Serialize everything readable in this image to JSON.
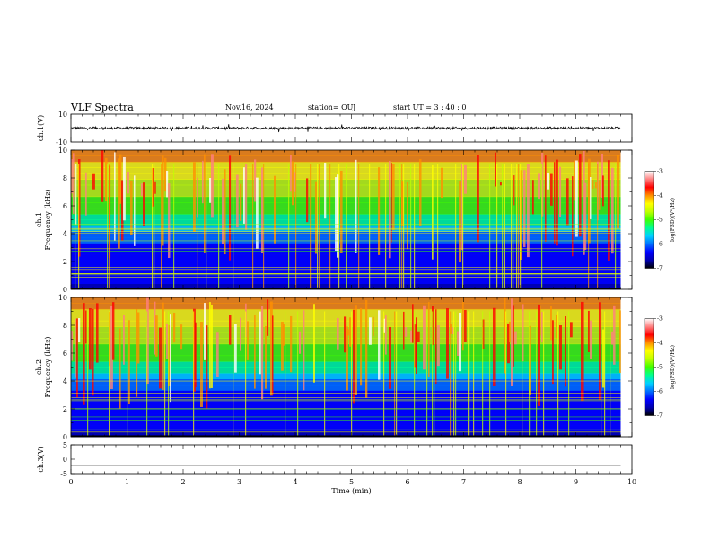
{
  "header": {
    "title": "VLF Spectra",
    "date": "Nov.16, 2024",
    "station": "station= OUJ",
    "start": "start  UT =   3 : 40 : 0"
  },
  "chart_data": [
    {
      "type": "line",
      "panel": "ch1-waveform",
      "ylabel": "ch.1(V)",
      "ylim": [
        -10,
        10
      ],
      "y_ticks": [
        "10",
        "-10"
      ],
      "xlim": [
        0,
        10
      ],
      "series_color": "#000000",
      "description_level": "noisy waveform centered near 0 V, amplitude roughly ±1 V with occasional spikes to ±3 V"
    },
    {
      "type": "heatmap",
      "panel": "ch1-spectrogram",
      "ylabel": "ch.1\nFrequency (kHz)",
      "ylabel_top": "ch.1",
      "ylabel_bottom": "Frequency (kHz)",
      "ylim": [
        0,
        10
      ],
      "y_ticks": [
        "0",
        "2",
        "4",
        "6",
        "8",
        "10"
      ],
      "xlim": [
        0,
        10
      ],
      "colorbar": {
        "label": "log(PSD)(V²/Hz)",
        "range": [
          -7,
          -3
        ],
        "ticks": [
          "-3",
          "-4",
          "-5",
          "-6",
          "-7"
        ],
        "colors": [
          "#000000",
          "#0000b0",
          "#0000ff",
          "#0070ff",
          "#00d0ff",
          "#00ff90",
          "#40ff00",
          "#c0ff00",
          "#ffff00",
          "#ff9000",
          "#ff0000",
          "#ff8080",
          "#ffffff"
        ]
      },
      "data_end_min": 9.8
    },
    {
      "type": "heatmap",
      "panel": "ch2-spectrogram",
      "ylabel_top": "ch.2",
      "ylabel_bottom": "Frequency (kHz)",
      "ylim": [
        0,
        10
      ],
      "y_ticks": [
        "0",
        "2",
        "4",
        "6",
        "8",
        "10"
      ],
      "xlim": [
        0,
        10
      ],
      "colorbar": {
        "label": "log(PSD)(V²/Hz)",
        "range": [
          -7,
          -3
        ],
        "ticks": [
          "-3",
          "-4",
          "-5",
          "-6",
          "-7"
        ]
      },
      "data_end_min": 9.8
    },
    {
      "type": "line",
      "panel": "ch3-waveform",
      "ylabel": "ch.3(V)",
      "ylim": [
        -5,
        5
      ],
      "y_ticks": [
        "5",
        "0",
        "-5"
      ],
      "xlim": [
        0,
        10
      ],
      "x": [
        0,
        9.8
      ],
      "y": [
        -2.3,
        -2.3
      ],
      "xlabel": "Time  (min)",
      "x_ticks": [
        "0",
        "1",
        "2",
        "3",
        "4",
        "5",
        "6",
        "7",
        "8",
        "9",
        "10"
      ]
    }
  ]
}
